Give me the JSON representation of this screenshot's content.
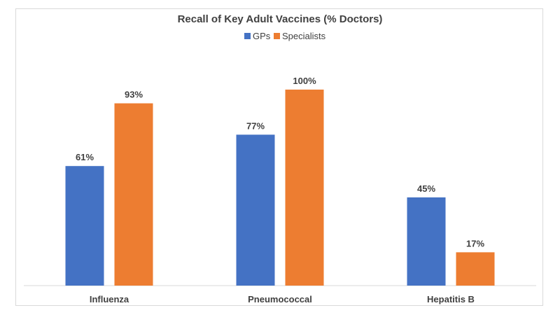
{
  "chart_data": {
    "type": "bar",
    "title": "Recall of Key Adult Vaccines (% Doctors)",
    "categories": [
      "Influenza",
      "Pneumococcal",
      "Hepatitis B"
    ],
    "series": [
      {
        "name": "GPs",
        "values": [
          61,
          77,
          45
        ],
        "labels": [
          "61%",
          "77%",
          "45%"
        ],
        "color": "#4472C4"
      },
      {
        "name": "Specialists",
        "values": [
          93,
          100,
          17
        ],
        "labels": [
          "93%",
          "100%",
          "17%"
        ],
        "color": "#ED7D31"
      }
    ],
    "ylim": [
      0,
      100
    ],
    "grid": false,
    "legend_position": "top-center"
  }
}
